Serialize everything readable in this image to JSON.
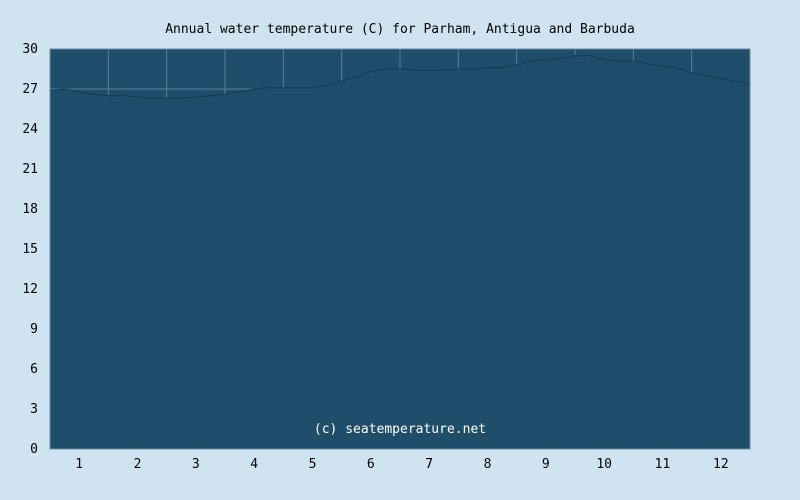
{
  "chart_data": {
    "type": "area",
    "title": "Annual water temperature (C) for Parham, Antigua and Barbuda",
    "watermark": "(c) seatemperature.net",
    "xlabel": "",
    "ylabel": "",
    "x_ticks": [
      "1",
      "2",
      "3",
      "4",
      "5",
      "6",
      "7",
      "8",
      "9",
      "10",
      "11",
      "12"
    ],
    "y_ticks": [
      "0",
      "3",
      "6",
      "9",
      "12",
      "15",
      "18",
      "21",
      "24",
      "27",
      "30"
    ],
    "xlim": [
      0.5,
      12.5
    ],
    "ylim": [
      0,
      30
    ],
    "grid": true,
    "x": [
      0.5,
      0.75,
      1.0,
      1.25,
      1.5,
      1.75,
      2.0,
      2.25,
      2.5,
      2.75,
      3.0,
      3.25,
      3.5,
      3.75,
      4.0,
      4.25,
      4.5,
      4.75,
      5.0,
      5.25,
      5.5,
      5.75,
      6.0,
      6.25,
      6.5,
      6.75,
      7.0,
      7.25,
      7.5,
      7.75,
      8.0,
      8.25,
      8.5,
      8.75,
      9.0,
      9.25,
      9.5,
      9.75,
      10.0,
      10.25,
      10.5,
      10.75,
      11.0,
      11.25,
      11.5,
      11.75,
      12.0,
      12.25,
      12.5
    ],
    "values": [
      26.9,
      27.0,
      26.8,
      26.6,
      26.5,
      26.5,
      26.4,
      26.3,
      26.3,
      26.3,
      26.4,
      26.5,
      26.6,
      26.8,
      27.0,
      27.1,
      27.1,
      27.1,
      27.1,
      27.3,
      27.6,
      27.9,
      28.3,
      28.5,
      28.5,
      28.4,
      28.4,
      28.4,
      28.5,
      28.5,
      28.6,
      28.6,
      28.8,
      29.1,
      29.2,
      29.3,
      29.5,
      29.5,
      29.2,
      29.1,
      29.1,
      28.9,
      28.7,
      28.6,
      28.2,
      28.0,
      27.8,
      27.6,
      27.4
    ],
    "colors": {
      "background": "#cfe4f0",
      "plot_fill": "#1f4e6b",
      "area_fill": "#1f4e6b",
      "grid": "#5d7f96",
      "frame": "#6a8aa0"
    }
  }
}
